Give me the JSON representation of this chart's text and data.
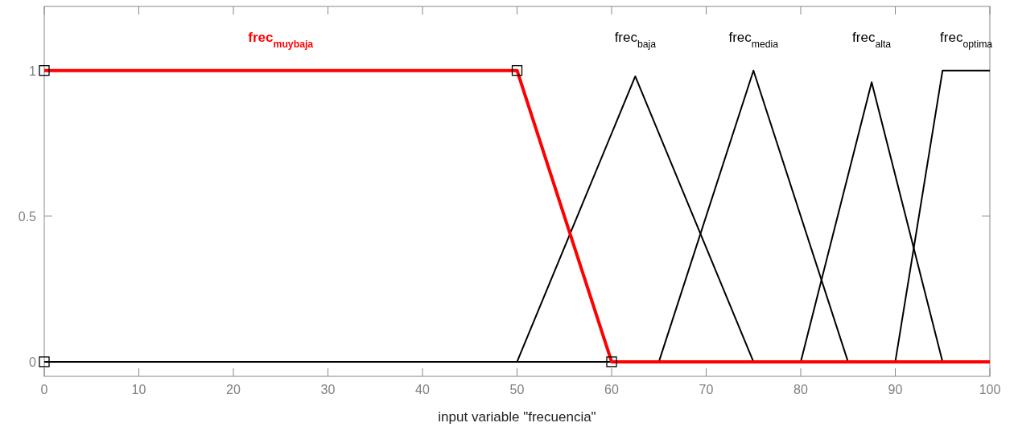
{
  "chart_data": {
    "type": "line",
    "xlabel": "input variable \"frecuencia\"",
    "xlim": [
      0,
      100
    ],
    "xticks": [
      0,
      10,
      20,
      30,
      40,
      50,
      60,
      70,
      80,
      90,
      100
    ],
    "ylim": [
      -0.05,
      1.22
    ],
    "yticks": [
      0,
      0.5,
      1
    ],
    "grid": false,
    "marker": "none",
    "line_style": "solid",
    "series": [
      {
        "name": "frec$_{baja}$",
        "color": "#000000",
        "x": [
          0,
          50,
          62.5,
          75,
          100
        ],
        "values": [
          0,
          0,
          0.98,
          0,
          0
        ]
      },
      {
        "name": "frec$_{media}$",
        "color": "#000000",
        "x": [
          0,
          65,
          75,
          85,
          100
        ],
        "values": [
          0,
          0,
          1,
          0,
          0
        ]
      },
      {
        "name": "frec$_{alta}$",
        "color": "#000000",
        "x": [
          0,
          80,
          87.5,
          95,
          100
        ],
        "values": [
          0,
          0,
          0.96,
          0,
          0
        ]
      },
      {
        "name": "frec$_{optima}$",
        "color": "#000000",
        "x": [
          0,
          90,
          95,
          100
        ],
        "values": [
          0,
          0,
          1,
          1
        ]
      },
      {
        "name": "frec$_{muybaja}$",
        "color": "#ff0000",
        "x": [
          0,
          50,
          60,
          100
        ],
        "values": [
          1,
          1,
          0,
          0
        ]
      },
      {
        "type": "scatter",
        "marker": "square",
        "color": "#000000",
        "x": [
          0,
          0,
          50,
          60
        ],
        "values": [
          0,
          1,
          1,
          0
        ]
      }
    ]
  }
}
